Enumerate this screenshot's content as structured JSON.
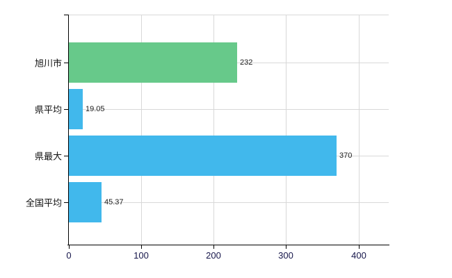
{
  "chart_data": {
    "type": "bar",
    "orientation": "horizontal",
    "title": "",
    "xlabel": "",
    "ylabel": "",
    "categories": [
      "旭川市",
      "県平均",
      "県最大",
      "全国平均"
    ],
    "values": [
      232,
      19.05,
      370,
      45.37
    ],
    "value_labels": [
      "232",
      "19.05",
      "370",
      "45.37"
    ],
    "bar_colors": [
      "#67c98a",
      "#41b8ec",
      "#41b8ec",
      "#41b8ec"
    ],
    "x_tick_values": [
      0,
      100,
      200,
      300,
      400
    ],
    "x_tick_labels": [
      "0",
      "100",
      "200",
      "300",
      "400"
    ],
    "xlim": [
      0,
      442
    ],
    "grid": true,
    "legend": "none",
    "colors": {
      "grid": "#d8d8d8",
      "axis": "#000000",
      "category_text": "#111111",
      "value_text": "#1c1c1c",
      "tick_text": "#15154a",
      "background": "#ffffff"
    }
  }
}
